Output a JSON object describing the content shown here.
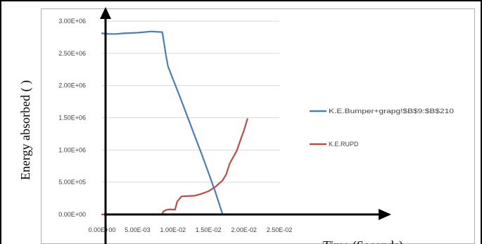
{
  "chart_data": {
    "type": "line",
    "title": "",
    "xlabel": "Time (Seconds)",
    "ylabel": "Energy absorbed ( )",
    "xlim": [
      0,
      0.025
    ],
    "ylim": [
      0,
      3000000
    ],
    "x_tick_labels": [
      "0.00E+00",
      "5.00E-03",
      "1.00E-02",
      "1.50E-02",
      "2.00E-02",
      "2.50E-02"
    ],
    "y_tick_labels": [
      "0.00E+00",
      "5.00E+05",
      "1.00E+06",
      "1.50E+06",
      "2.00E+06",
      "2.50E+06",
      "3.00E+06"
    ],
    "grid": true,
    "legend_position": "right",
    "series": [
      {
        "name": "K.E.Bumper+grapg!$B$9:$B$210",
        "color": "#4a7ebb",
        "points": [
          [
            0,
            2810000
          ],
          [
            0.001,
            2800000
          ],
          [
            0.002,
            2800000
          ],
          [
            0.003,
            2810000
          ],
          [
            0.004,
            2815000
          ],
          [
            0.005,
            2820000
          ],
          [
            0.006,
            2830000
          ],
          [
            0.007,
            2840000
          ],
          [
            0.0075,
            2835000
          ],
          [
            0.0085,
            2830000
          ],
          [
            0.009,
            2480000
          ],
          [
            0.0093,
            2300000
          ],
          [
            0.01,
            2100000
          ],
          [
            0.011,
            1820000
          ],
          [
            0.012,
            1530000
          ],
          [
            0.013,
            1240000
          ],
          [
            0.014,
            950000
          ],
          [
            0.015,
            650000
          ],
          [
            0.016,
            340000
          ],
          [
            0.017,
            0
          ]
        ]
      },
      {
        "name": "K.E.RUPD",
        "color": "#be4b48",
        "points": [
          [
            0,
            0
          ],
          [
            0.0085,
            0
          ],
          [
            0.0086,
            40000
          ],
          [
            0.009,
            70000
          ],
          [
            0.0095,
            80000
          ],
          [
            0.0103,
            75000
          ],
          [
            0.0106,
            200000
          ],
          [
            0.0112,
            280000
          ],
          [
            0.012,
            285000
          ],
          [
            0.013,
            290000
          ],
          [
            0.014,
            320000
          ],
          [
            0.015,
            360000
          ],
          [
            0.016,
            430000
          ],
          [
            0.017,
            530000
          ],
          [
            0.0175,
            620000
          ],
          [
            0.018,
            790000
          ],
          [
            0.019,
            990000
          ],
          [
            0.0195,
            1150000
          ],
          [
            0.02,
            1300000
          ],
          [
            0.0205,
            1480000
          ]
        ]
      }
    ]
  }
}
